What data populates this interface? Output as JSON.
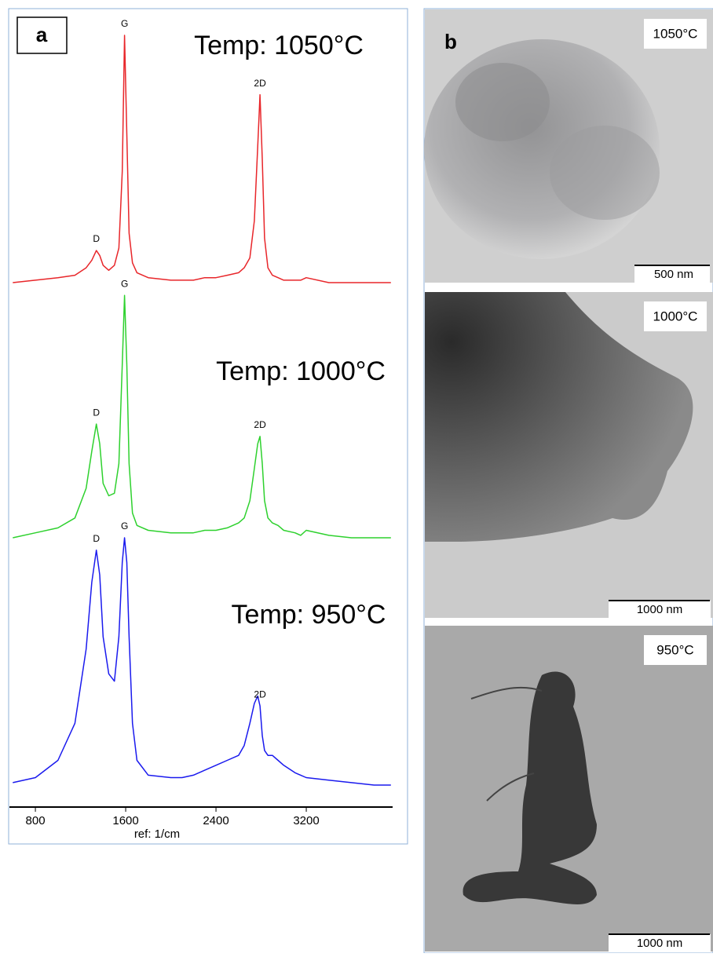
{
  "chart_data": {
    "type": "line",
    "panel_label": "a",
    "xlabel": "ref: 1/cm",
    "xlim": [
      570,
      3965
    ],
    "xticks": [
      800,
      1600,
      2400,
      3200
    ],
    "ylim": [
      0,
      100
    ],
    "x": [
      600,
      800,
      1000,
      1150,
      1250,
      1300,
      1340,
      1370,
      1400,
      1450,
      1500,
      1540,
      1570,
      1590,
      1610,
      1630,
      1660,
      1700,
      1800,
      2000,
      2100,
      2200,
      2300,
      2400,
      2500,
      2600,
      2650,
      2700,
      2740,
      2770,
      2790,
      2810,
      2830,
      2860,
      2900,
      2950,
      3000,
      3100,
      3150,
      3200,
      3400,
      3600,
      3800,
      3950
    ],
    "series": [
      {
        "name": "Temp: 1050°C",
        "color": "#e8262a",
        "values": [
          0,
          1,
          2,
          3,
          6,
          9,
          13,
          11,
          7,
          5,
          7,
          14,
          45,
          100,
          60,
          20,
          8,
          4,
          2,
          1,
          1,
          1,
          2,
          2,
          3,
          4,
          6,
          10,
          25,
          55,
          76,
          50,
          18,
          6,
          3,
          2,
          1,
          1,
          1,
          2,
          0,
          0,
          0,
          0
        ],
        "peak_labels": [
          {
            "label": "D",
            "x": 1340
          },
          {
            "label": "G",
            "x": 1590
          },
          {
            "label": "2D",
            "x": 2790
          }
        ]
      },
      {
        "name": "Temp: 1000°C",
        "color": "#2ed12e",
        "values": [
          0,
          2,
          4,
          8,
          20,
          35,
          46,
          38,
          22,
          17,
          18,
          30,
          70,
          98,
          70,
          30,
          10,
          5,
          3,
          2,
          2,
          2,
          3,
          3,
          4,
          6,
          8,
          15,
          28,
          38,
          41,
          30,
          15,
          8,
          6,
          5,
          3,
          2,
          1,
          3,
          1,
          0,
          0,
          0
        ],
        "peak_labels": [
          {
            "label": "D",
            "x": 1340
          },
          {
            "label": "G",
            "x": 1590
          },
          {
            "label": "2D",
            "x": 2790
          }
        ]
      },
      {
        "name": "Temp: 950°C",
        "color": "#1a1aee",
        "values": [
          1,
          3,
          10,
          25,
          55,
          82,
          95,
          85,
          60,
          45,
          42,
          60,
          90,
          100,
          90,
          60,
          25,
          10,
          4,
          3,
          3,
          4,
          6,
          8,
          10,
          12,
          16,
          25,
          33,
          36,
          32,
          20,
          14,
          12,
          12,
          10,
          8,
          5,
          4,
          3,
          2,
          1,
          0,
          0
        ],
        "peak_labels": [
          {
            "label": "D",
            "x": 1340
          },
          {
            "label": "G",
            "x": 1590
          },
          {
            "label": "2D",
            "x": 2790
          }
        ]
      }
    ]
  },
  "panel_b": {
    "label": "b",
    "images": [
      {
        "temperature": "1050°C",
        "scale_bar": "500 nm"
      },
      {
        "temperature": "1000°C",
        "scale_bar": "1000 nm"
      },
      {
        "temperature": "950°C",
        "scale_bar": "1000 nm"
      }
    ]
  }
}
